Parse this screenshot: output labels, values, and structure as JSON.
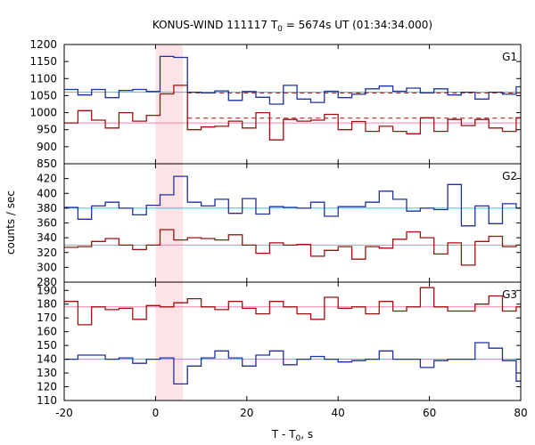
{
  "chart_data": {
    "type": "line",
    "title_main": "KONUS-WIND 111117 T",
    "title_sub": "0",
    "title_rest": " = 5674s UT (01:34:34.000)",
    "xlabel_main": "T - T",
    "xlabel_sub": "0",
    "xlabel_rest": ", s",
    "ylabel": "counts / sec",
    "xlim": [
      -20,
      80
    ],
    "x_ticks": [
      -20,
      0,
      20,
      40,
      60,
      80
    ],
    "highlight_interval": [
      0,
      6
    ],
    "colors": {
      "red_series": "#a01010",
      "blue_series": "#2030a0",
      "red_bg": "#ff80b0",
      "blue_bg": "#40c0e0",
      "dashed": "#a01010",
      "highlight": "#fde3e6"
    },
    "panels": [
      {
        "label": "G1",
        "ylim": [
          850,
          1200
        ],
        "y_ticks": [
          850,
          900,
          950,
          1000,
          1050,
          1100,
          1150,
          1200
        ],
        "bin_edges_blue": [
          -20,
          -17,
          -14,
          -11,
          -8,
          -5,
          -2,
          1,
          4,
          7,
          10,
          13,
          16,
          19,
          22,
          25,
          28,
          31,
          34,
          37,
          40,
          43,
          46,
          49,
          52,
          55,
          58,
          61,
          64,
          67,
          70,
          73,
          76,
          79,
          80
        ],
        "blue_values": [
          1068,
          1052,
          1068,
          1044,
          1065,
          1068,
          1062,
          1165,
          1162,
          1060,
          1058,
          1064,
          1036,
          1062,
          1045,
          1025,
          1080,
          1040,
          1030,
          1063,
          1044,
          1054,
          1070,
          1078,
          1063,
          1072,
          1058,
          1070,
          1052,
          1060,
          1040,
          1060,
          1054,
          1076
        ],
        "blue_bg": [
          1060,
          1060,
          1060,
          1060,
          1060,
          1060,
          1060,
          1060,
          1060,
          1060,
          1060,
          1060,
          1060,
          1060,
          1060,
          1060,
          1060,
          1060,
          1060,
          1060,
          1060,
          1060,
          1060,
          1060,
          1060,
          1060,
          1060,
          1060,
          1060,
          1060,
          1060,
          1060,
          1060,
          1060
        ],
        "red_values": [
          970,
          1006,
          978,
          955,
          1000,
          975,
          992,
          1055,
          1080,
          950,
          958,
          960,
          975,
          955,
          1000,
          920,
          980,
          975,
          978,
          995,
          950,
          974,
          945,
          960,
          945,
          938,
          985,
          945,
          980,
          962,
          980,
          955,
          945,
          985
        ],
        "red_bg": [
          970,
          970,
          970,
          970,
          970,
          970,
          970,
          970,
          970,
          970,
          970,
          970,
          970,
          970,
          970,
          970,
          970,
          970,
          970,
          970,
          970,
          970,
          970,
          970,
          970,
          970,
          970,
          970,
          970,
          970,
          970,
          970,
          970,
          970
        ],
        "dashed_levels": [
          1058,
          984
        ]
      },
      {
        "label": "G2",
        "ylim": [
          280,
          440
        ],
        "y_ticks": [
          280,
          300,
          320,
          340,
          360,
          380,
          400,
          420
        ],
        "bin_edges_blue": [
          -20,
          -17,
          -14,
          -11,
          -8,
          -5,
          -2,
          1,
          4,
          7,
          10,
          13,
          16,
          19,
          22,
          25,
          28,
          31,
          34,
          37,
          40,
          43,
          46,
          49,
          52,
          55,
          58,
          61,
          64,
          67,
          70,
          73,
          76,
          79,
          80
        ],
        "blue_values": [
          381,
          365,
          383,
          388,
          380,
          371,
          384,
          398,
          423,
          388,
          383,
          392,
          373,
          393,
          372,
          382,
          381,
          380,
          388,
          369,
          382,
          382,
          388,
          403,
          392,
          376,
          380,
          378,
          412,
          356,
          383,
          359,
          386,
          380
        ],
        "blue_bg": [
          380,
          380,
          380,
          380,
          380,
          380,
          380,
          380,
          380,
          380,
          380,
          380,
          380,
          380,
          380,
          380,
          380,
          380,
          380,
          380,
          380,
          380,
          380,
          380,
          380,
          380,
          380,
          380,
          380,
          380,
          380,
          380,
          380,
          380
        ],
        "red_values": [
          327,
          328,
          335,
          339,
          330,
          324,
          330,
          351,
          337,
          340,
          339,
          337,
          344,
          330,
          319,
          333,
          330,
          331,
          315,
          323,
          328,
          311,
          328,
          326,
          338,
          348,
          340,
          318,
          333,
          303,
          335,
          342,
          328,
          330
        ],
        "red_bg": [
          330,
          330,
          330,
          330,
          330,
          330,
          330,
          330,
          330,
          330,
          330,
          330,
          330,
          330,
          330,
          330,
          330,
          330,
          330,
          330,
          330,
          330,
          330,
          330,
          330,
          330,
          330,
          330,
          330,
          330,
          330,
          330,
          330,
          330
        ]
      },
      {
        "label": "G3",
        "ylim": [
          110,
          196
        ],
        "y_ticks": [
          110,
          120,
          130,
          140,
          150,
          160,
          170,
          180,
          190
        ],
        "bin_edges_blue": [
          -20,
          -17,
          -14,
          -11,
          -8,
          -5,
          -2,
          1,
          4,
          7,
          10,
          13,
          16,
          19,
          22,
          25,
          28,
          31,
          34,
          37,
          40,
          43,
          46,
          49,
          52,
          55,
          58,
          61,
          64,
          67,
          70,
          73,
          76,
          79,
          80
        ],
        "blue_values": [
          140,
          143,
          143,
          140,
          141,
          137,
          140,
          141,
          122,
          135,
          141,
          146,
          141,
          135,
          143,
          146,
          136,
          140,
          142,
          140,
          138,
          139,
          140,
          146,
          140,
          140,
          134,
          139,
          140,
          140,
          152,
          148,
          139,
          124
        ],
        "blue_bg": [
          140,
          140,
          140,
          140,
          140,
          140,
          140,
          140,
          140,
          140,
          140,
          140,
          140,
          140,
          140,
          140,
          140,
          140,
          140,
          140,
          140,
          140,
          140,
          140,
          140,
          140,
          140,
          140,
          140,
          140,
          140,
          140,
          140,
          140
        ],
        "red_values": [
          182,
          165,
          178,
          176,
          177,
          169,
          179,
          178,
          181,
          184,
          178,
          176,
          182,
          177,
          173,
          182,
          178,
          173,
          169,
          185,
          177,
          178,
          173,
          182,
          175,
          178,
          192,
          178,
          175,
          175,
          180,
          186,
          175,
          178
        ],
        "red_bg": [
          178,
          178,
          178,
          178,
          178,
          178,
          178,
          178,
          178,
          178,
          178,
          178,
          178,
          178,
          178,
          178,
          178,
          178,
          178,
          178,
          178,
          178,
          178,
          178,
          178,
          178,
          178,
          178,
          178,
          178,
          178,
          178,
          178,
          178
        ]
      }
    ]
  }
}
